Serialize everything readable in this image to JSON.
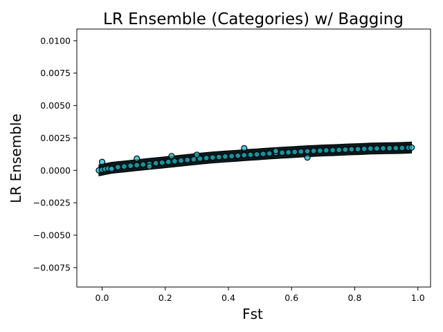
{
  "chart_data": {
    "type": "scatter",
    "title": "LR Ensemble (Categories) w/ Bagging",
    "xlabel": "Fst",
    "ylabel": "LR Ensemble",
    "xlim": [
      -0.08,
      1.04
    ],
    "ylim": [
      -0.009,
      0.0109
    ],
    "xticks": [
      0.0,
      0.2,
      0.4,
      0.6,
      0.8,
      1.0
    ],
    "xtick_labels": [
      "0.0",
      "0.2",
      "0.4",
      "0.6",
      "0.8",
      "1.0"
    ],
    "yticks": [
      -0.0075,
      -0.005,
      -0.0025,
      0.0,
      0.0025,
      0.005,
      0.0075,
      0.01
    ],
    "ytick_labels": [
      "−0.0075",
      "−0.0050",
      "−0.0025",
      "0.0000",
      "0.0025",
      "0.0050",
      "0.0075",
      "0.0100"
    ],
    "marker_color": "#17becf",
    "marker_edge_color": "#000000",
    "grid": false,
    "series": [
      {
        "name": "samples",
        "x": [
          -0.01,
          0.0,
          0.01,
          0.02,
          0.03,
          0.05,
          0.07,
          0.09,
          0.11,
          0.13,
          0.15,
          0.17,
          0.19,
          0.21,
          0.23,
          0.25,
          0.27,
          0.29,
          0.31,
          0.33,
          0.35,
          0.37,
          0.39,
          0.41,
          0.43,
          0.45,
          0.47,
          0.49,
          0.51,
          0.53,
          0.55,
          0.57,
          0.59,
          0.61,
          0.63,
          0.65,
          0.67,
          0.69,
          0.71,
          0.73,
          0.75,
          0.77,
          0.79,
          0.81,
          0.83,
          0.85,
          0.87,
          0.89,
          0.91,
          0.93,
          0.95,
          0.97,
          0.98,
          0.0,
          0.11,
          0.22,
          0.45,
          0.65,
          0.15,
          0.03,
          0.3,
          0.55
        ],
        "y": [
          0.0,
          5e-05,
          0.0001,
          0.00015,
          0.0002,
          0.00025,
          0.0003,
          0.00035,
          0.0004,
          0.00045,
          0.0005,
          0.00055,
          0.0006,
          0.00065,
          0.0007,
          0.00075,
          0.0008,
          0.00085,
          0.0009,
          0.00095,
          0.001,
          0.00103,
          0.00107,
          0.0011,
          0.00113,
          0.00117,
          0.0012,
          0.00123,
          0.00127,
          0.0013,
          0.00133,
          0.00136,
          0.00139,
          0.00142,
          0.00145,
          0.00148,
          0.0015,
          0.00152,
          0.00154,
          0.00156,
          0.00158,
          0.0016,
          0.00162,
          0.00164,
          0.00166,
          0.00168,
          0.00169,
          0.0017,
          0.00171,
          0.00172,
          0.00173,
          0.00175,
          0.00176,
          0.00065,
          0.0009,
          0.0011,
          0.0017,
          0.001,
          0.0003,
          0.0001,
          0.0012,
          0.0015
        ]
      }
    ]
  }
}
